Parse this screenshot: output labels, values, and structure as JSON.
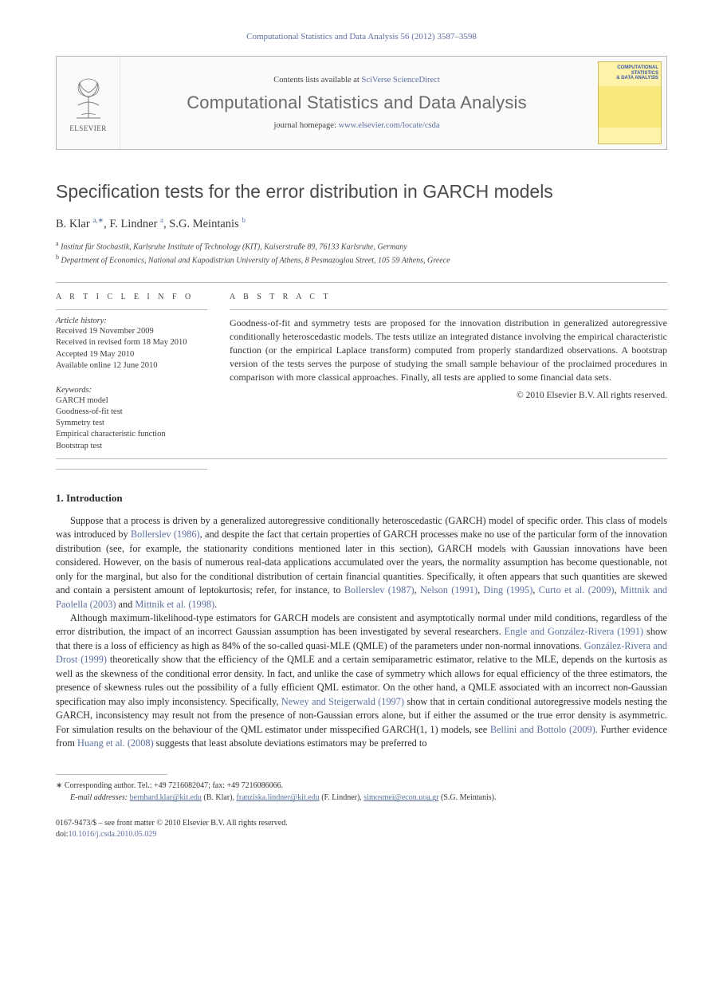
{
  "header": {
    "running_head": "Computational Statistics and Data Analysis 56 (2012) 3587–3598"
  },
  "masthead": {
    "publisher_label": "ELSEVIER",
    "contents_prefix": "Contents lists available at ",
    "contents_link": "SciVerse ScienceDirect",
    "journal_title": "Computational Statistics and Data Analysis",
    "homepage_prefix": "journal homepage: ",
    "homepage_link": "www.elsevier.com/locate/csda",
    "cover_title_line1": "COMPUTATIONAL",
    "cover_title_line2": "STATISTICS",
    "cover_title_line3": "& DATA ANALYSIS"
  },
  "title": "Specification tests for the error distribution in GARCH models",
  "authors_html": "B. Klar <sup>a,∗</sup>, F. Lindner <sup>a</sup>, S.G. Meintanis <sup>b</sup>",
  "affiliations": {
    "a": "Institut für Stochastik, Karlsruhe Institute of Technology (KIT), Kaiserstraße 89, 76133 Karlsruhe, Germany",
    "b": "Department of Economics, National and Kapodistrian University of Athens, 8 Pesmazoglou Street, 105 59 Athens, Greece"
  },
  "info": {
    "head": "A R T I C L E   I N F O",
    "history_head": "Article history:",
    "history": [
      "Received 19 November 2009",
      "Received in revised form 18 May 2010",
      "Accepted 19 May 2010",
      "Available online 12 June 2010"
    ],
    "keywords_head": "Keywords:",
    "keywords": [
      "GARCH model",
      "Goodness-of-fit test",
      "Symmetry test",
      "Empirical characteristic function",
      "Bootstrap test"
    ]
  },
  "abstract": {
    "head": "A B S T R A C T",
    "text": "Goodness-of-fit and symmetry tests are proposed for the innovation distribution in generalized autoregressive conditionally heteroscedastic models. The tests utilize an integrated distance involving the empirical characteristic function (or the empirical Laplace transform) computed from properly standardized observations. A bootstrap version of the tests serves the purpose of studying the small sample behaviour of the proclaimed procedures in comparison with more classical approaches. Finally, all tests are applied to some financial data sets.",
    "copyright": "© 2010 Elsevier B.V. All rights reserved."
  },
  "sections": {
    "s1_head": "1. Introduction",
    "p1_a": "Suppose that a process is driven by a generalized autoregressive conditionally heteroscedastic (GARCH) model of specific order. This class of models was introduced by ",
    "p1_ref1": "Bollerslev (1986)",
    "p1_b": ", and despite the fact that certain properties of GARCH processes make no use of the particular form of the innovation distribution (see, for example, the stationarity conditions mentioned later in this section), GARCH models with Gaussian innovations have been considered. However, on the basis of numerous real-data applications accumulated over the years, the normality assumption has become questionable, not only for the marginal, but also for the conditional distribution of certain financial quantities. Specifically, it often appears that such quantities are skewed and contain a persistent amount of leptokurtosis; refer, for instance, to ",
    "p1_ref2": "Bollerslev (1987)",
    "p1_c": ", ",
    "p1_ref3": "Nelson (1991)",
    "p1_d": ", ",
    "p1_ref4": "Ding (1995)",
    "p1_e": ", ",
    "p1_ref5": "Curto et al. (2009)",
    "p1_f": ", ",
    "p1_ref6": "Mittnik and Paolella (2003)",
    "p1_g": " and ",
    "p1_ref7": "Mittnik et al. (1998)",
    "p1_h": ".",
    "p2_a": "Although maximum-likelihood-type estimators for GARCH models are consistent and asymptotically normal under mild conditions, regardless of the error distribution, the impact of an incorrect Gaussian assumption has been investigated by several researchers. ",
    "p2_ref1": "Engle and González-Rivera (1991)",
    "p2_b": " show that there is a loss of efficiency as high as 84% of the so-called quasi-MLE (QMLE) of the parameters under non-normal innovations. ",
    "p2_ref2": "González-Rivera and Drost (1999)",
    "p2_c": " theoretically show that the efficiency of the QMLE and a certain semiparametric estimator, relative to the MLE, depends on the kurtosis as well as the skewness of the conditional error density. In fact, and unlike the case of symmetry which allows for equal efficiency of the three estimators, the presence of skewness rules out the possibility of a fully efficient QML estimator. On the other hand, a QMLE associated with an incorrect non-Gaussian specification may also imply inconsistency. Specifically, ",
    "p2_ref3": "Newey and Steigerwald (1997)",
    "p2_d": " show that in certain conditional autoregressive models nesting the GARCH, inconsistency may result not from the presence of non-Gaussian errors alone, but if either the assumed or the true error density is asymmetric. For simulation results on the behaviour of the QML estimator under misspecified GARCH(1, 1) models, see ",
    "p2_ref4": "Bellini and Bottolo (2009)",
    "p2_e": ". Further evidence from ",
    "p2_ref5": "Huang et al. (2008)",
    "p2_f": " suggests that least absolute deviations estimators may be preferred to"
  },
  "footnotes": {
    "corr": "∗ Corresponding author. Tel.: +49 7216082047; fax: +49 7216086066.",
    "email_label": "E-mail addresses:",
    "e1": "bernhard.klar@kit.edu",
    "n1": " (B. Klar), ",
    "e2": "franziska.lindner@kit.edu",
    "n2": " (F. Lindner), ",
    "e3": "simosmei@econ.uoa.gr",
    "n3": " (S.G. Meintanis)."
  },
  "bottom": {
    "issn_line": "0167-9473/$ – see front matter © 2010 Elsevier B.V. All rights reserved.",
    "doi_label": "doi:",
    "doi": "10.1016/j.csda.2010.05.029"
  },
  "colors": {
    "link": "#5b6fa0",
    "rule": "#b8b8b8",
    "text": "#2b2b2b"
  }
}
